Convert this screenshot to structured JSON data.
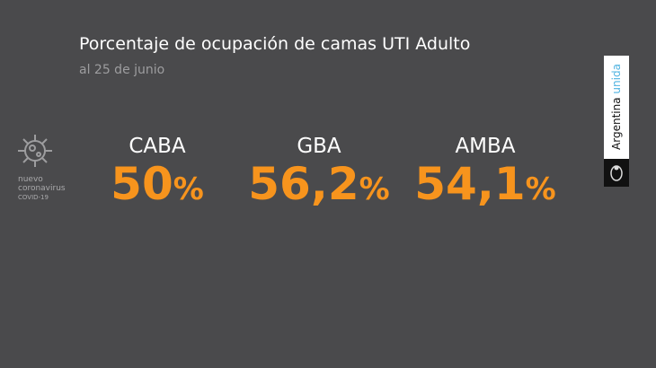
{
  "header": {
    "title": "Porcentaje de ocupación de camas UTI Adulto",
    "subtitle": "al 25 de junio"
  },
  "stats": [
    {
      "label": "CABA",
      "value": "50",
      "unit": "%"
    },
    {
      "label": "GBA",
      "value": "56,2",
      "unit": "%"
    },
    {
      "label": "AMBA",
      "value": "54,1",
      "unit": "%"
    }
  ],
  "badge": {
    "line1": "nuevo",
    "line2": "coronavirus",
    "line3": "COVID-19"
  },
  "brand": {
    "part1": "Argentina",
    "part2": "unida"
  }
}
